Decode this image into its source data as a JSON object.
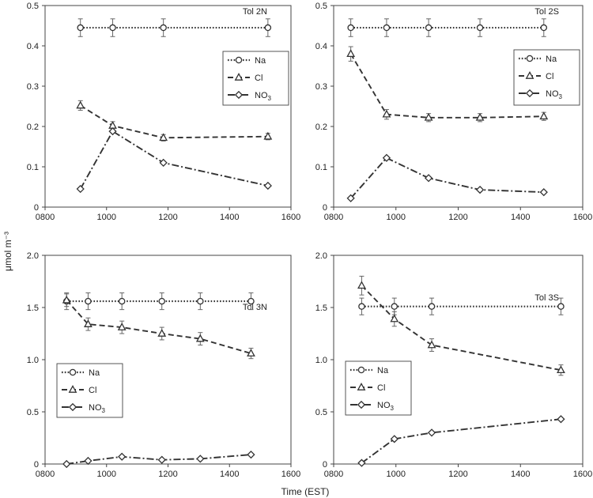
{
  "figure": {
    "ylabel": "μmol m⁻³",
    "xlabel": "Time (EST)"
  },
  "chart_data": [
    {
      "type": "line",
      "title": "Tol 2N",
      "xlim": [
        800,
        1600
      ],
      "ylim": [
        0,
        0.5
      ],
      "x_ticks": [
        "0800",
        "1000",
        "1200",
        "1400",
        "1600"
      ],
      "y_ticks": [
        "0",
        "0.1",
        "0.2",
        "0.3",
        "0.4",
        "0.5"
      ],
      "legend_position": "right, upper-middle",
      "series": [
        {
          "name": "Na",
          "label": "Na",
          "sub": "",
          "marker": "circle",
          "dash": "dotted",
          "x": [
            915,
            1020,
            1185,
            1525
          ],
          "y": [
            0.445,
            0.445,
            0.445,
            0.445
          ],
          "err": [
            0.022,
            0.022,
            0.022,
            0.022
          ]
        },
        {
          "name": "Cl",
          "label": "Cl",
          "sub": "",
          "marker": "triangle",
          "dash": "dashed",
          "x": [
            915,
            1020,
            1185,
            1525
          ],
          "y": [
            0.252,
            0.202,
            0.172,
            0.175
          ],
          "err": [
            0.012,
            0.01,
            0.008,
            0.008
          ]
        },
        {
          "name": "NO3",
          "label": "NO",
          "sub": "3",
          "marker": "diamond",
          "dash": "dashdot",
          "x": [
            915,
            1020,
            1185,
            1525
          ],
          "y": [
            0.045,
            0.188,
            0.11,
            0.053
          ],
          "err": [
            0,
            0,
            0,
            0
          ]
        }
      ]
    },
    {
      "type": "line",
      "title": "Tol 2S",
      "xlim": [
        800,
        1600
      ],
      "ylim": [
        0,
        0.5
      ],
      "x_ticks": [
        "0800",
        "1000",
        "1200",
        "1400",
        "1600"
      ],
      "y_ticks": [
        "0",
        "0.1",
        "0.2",
        "0.3",
        "0.4",
        "0.5"
      ],
      "legend_position": "right, upper-middle",
      "series": [
        {
          "name": "Na",
          "label": "Na",
          "sub": "",
          "marker": "circle",
          "dash": "dotted",
          "x": [
            855,
            970,
            1105,
            1270,
            1475
          ],
          "y": [
            0.445,
            0.445,
            0.445,
            0.445,
            0.445
          ],
          "err": [
            0.022,
            0.022,
            0.022,
            0.022,
            0.022
          ]
        },
        {
          "name": "Cl",
          "label": "Cl",
          "sub": "",
          "marker": "triangle",
          "dash": "dashed",
          "x": [
            855,
            970,
            1105,
            1270,
            1475
          ],
          "y": [
            0.38,
            0.23,
            0.222,
            0.222,
            0.225
          ],
          "err": [
            0.018,
            0.012,
            0.01,
            0.01,
            0.01
          ]
        },
        {
          "name": "NO3",
          "label": "NO",
          "sub": "3",
          "marker": "diamond",
          "dash": "dashdot",
          "x": [
            855,
            970,
            1105,
            1270,
            1475
          ],
          "y": [
            0.022,
            0.122,
            0.072,
            0.043,
            0.037
          ],
          "err": [
            0,
            0,
            0,
            0,
            0
          ]
        }
      ]
    },
    {
      "type": "line",
      "title": "Tol 3N",
      "xlim": [
        800,
        1600
      ],
      "ylim": [
        0,
        2.0
      ],
      "x_ticks": [
        "0800",
        "1000",
        "1200",
        "1400",
        "1600"
      ],
      "y_ticks": [
        "0",
        "0.5",
        "1.0",
        "1.5",
        "2.0"
      ],
      "legend_position": "left, lower-middle",
      "series": [
        {
          "name": "Na",
          "label": "Na",
          "sub": "",
          "marker": "circle",
          "dash": "dotted",
          "x": [
            870,
            940,
            1050,
            1180,
            1305,
            1470
          ],
          "y": [
            1.56,
            1.56,
            1.56,
            1.56,
            1.56,
            1.56
          ],
          "err": [
            0.08,
            0.08,
            0.08,
            0.08,
            0.08,
            0.08
          ]
        },
        {
          "name": "Cl",
          "label": "Cl",
          "sub": "",
          "marker": "triangle",
          "dash": "dashed",
          "x": [
            870,
            940,
            1050,
            1180,
            1305,
            1470
          ],
          "y": [
            1.57,
            1.34,
            1.31,
            1.25,
            1.2,
            1.06
          ],
          "err": [
            0.06,
            0.06,
            0.06,
            0.06,
            0.06,
            0.05
          ]
        },
        {
          "name": "NO3",
          "label": "NO",
          "sub": "3",
          "marker": "diamond",
          "dash": "dashdot",
          "x": [
            870,
            940,
            1050,
            1180,
            1305,
            1470
          ],
          "y": [
            0.0,
            0.03,
            0.07,
            0.04,
            0.05,
            0.09
          ],
          "err": [
            0,
            0,
            0,
            0,
            0,
            0
          ]
        }
      ]
    },
    {
      "type": "line",
      "title": "Tol 3S",
      "xlim": [
        800,
        1600
      ],
      "ylim": [
        0,
        2.0
      ],
      "x_ticks": [
        "0800",
        "1000",
        "1200",
        "1400",
        "1600"
      ],
      "y_ticks": [
        "0",
        "0.5",
        "1.0",
        "1.5",
        "2.0"
      ],
      "legend_position": "left, lower-middle",
      "series": [
        {
          "name": "Na",
          "label": "Na",
          "sub": "",
          "marker": "circle",
          "dash": "dotted",
          "x": [
            890,
            995,
            1115,
            1530
          ],
          "y": [
            1.51,
            1.51,
            1.51,
            1.51
          ],
          "err": [
            0.08,
            0.08,
            0.08,
            0.08
          ]
        },
        {
          "name": "Cl",
          "label": "Cl",
          "sub": "",
          "marker": "triangle",
          "dash": "dashed",
          "x": [
            890,
            995,
            1115,
            1530
          ],
          "y": [
            1.71,
            1.39,
            1.14,
            0.9
          ],
          "err": [
            0.09,
            0.07,
            0.06,
            0.05
          ]
        },
        {
          "name": "NO3",
          "label": "NO",
          "sub": "3",
          "marker": "diamond",
          "dash": "dashdot",
          "x": [
            890,
            995,
            1115,
            1530
          ],
          "y": [
            0.01,
            0.24,
            0.3,
            0.43
          ],
          "err": [
            0,
            0,
            0,
            0
          ]
        }
      ]
    }
  ]
}
